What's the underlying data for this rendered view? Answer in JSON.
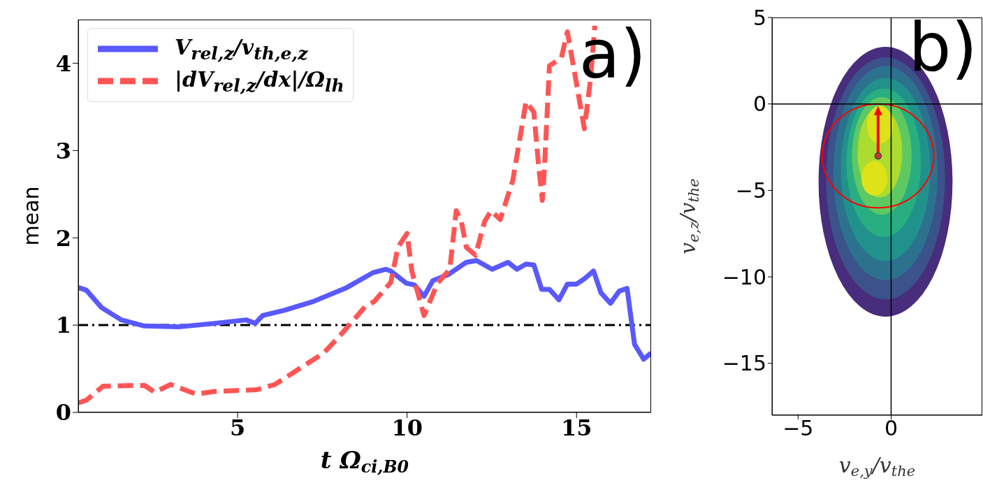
{
  "chart_data": [
    {
      "type": "line",
      "xlabel": "t Ω$_{ci,B0}$",
      "ylabel": "mean",
      "xlim": [
        0.3,
        17.2
      ],
      "xticks": [
        5,
        10,
        15
      ],
      "ylim": [
        0,
        4.5
      ],
      "yticks": [
        0,
        1,
        2,
        3,
        4
      ],
      "legend": "top left",
      "marker": "none",
      "annotations": [
        "a)"
      ],
      "ref_lines": [
        {
          "axis": "y",
          "value": 1,
          "color": "#000000",
          "line_style": "dashdot"
        }
      ],
      "series": [
        {
          "name": "V$_{rel,z}$/v$_{th,e,z}$",
          "color": "#5959ff",
          "line_style": "solid",
          "x": [
            0.31,
            0.54,
            0.99,
            1.57,
            2.25,
            3.26,
            4.32,
            5.25,
            5.52,
            5.74,
            6.38,
            7.23,
            8.22,
            8.99,
            9.38,
            9.52,
            9.98,
            10.22,
            10.5,
            10.76,
            11.22,
            11.75,
            12.05,
            12.51,
            12.98,
            13.24,
            13.51,
            13.74,
            13.97,
            14.2,
            14.48,
            14.73,
            15.0,
            15.23,
            15.5,
            15.72,
            16.0,
            16.26,
            16.49,
            16.71,
            16.98,
            17.2
          ],
          "values": [
            1.43,
            1.4,
            1.2,
            1.06,
            0.99,
            0.98,
            1.02,
            1.06,
            1.02,
            1.11,
            1.17,
            1.27,
            1.43,
            1.6,
            1.64,
            1.62,
            1.48,
            1.46,
            1.33,
            1.51,
            1.58,
            1.72,
            1.74,
            1.64,
            1.72,
            1.64,
            1.7,
            1.69,
            1.41,
            1.41,
            1.29,
            1.47,
            1.47,
            1.53,
            1.62,
            1.37,
            1.25,
            1.39,
            1.42,
            0.78,
            0.61,
            0.68
          ]
        },
        {
          "name": "|dV$_{rel,z}$/dx|/Ω$_{lh}$",
          "color": "#ff5555",
          "line_style": "dashed",
          "x": [
            0.31,
            0.54,
            1.03,
            2.25,
            2.56,
            3.02,
            3.78,
            4.32,
            5.56,
            6.1,
            6.78,
            7.54,
            8.0,
            8.76,
            9.03,
            9.52,
            9.73,
            9.88,
            10.0,
            10.14,
            10.5,
            10.9,
            11.26,
            11.45,
            11.6,
            11.75,
            12.02,
            12.29,
            12.48,
            12.75,
            13.12,
            13.51,
            13.74,
            13.88,
            13.99,
            14.05,
            14.2,
            14.55,
            14.73,
            15.23,
            15.41,
            15.54
          ],
          "values": [
            0.11,
            0.14,
            0.3,
            0.31,
            0.23,
            0.32,
            0.21,
            0.24,
            0.26,
            0.32,
            0.49,
            0.68,
            0.87,
            1.21,
            1.27,
            1.49,
            1.89,
            1.98,
            2.05,
            1.62,
            1.11,
            1.48,
            1.64,
            2.31,
            2.19,
            1.89,
            1.8,
            2.19,
            2.31,
            2.21,
            2.66,
            3.56,
            3.44,
            2.83,
            2.43,
            2.78,
            3.97,
            4.06,
            4.36,
            3.25,
            3.81,
            4.43
          ]
        }
      ]
    },
    {
      "type": "scatter",
      "xlabel": "v$_{e,y}$/v$_{the}$",
      "ylabel": "v$_{e,z}$/v$_{the}$",
      "xlim": [
        -6.4,
        4.9
      ],
      "xticks": [
        -5,
        0
      ],
      "ylim": [
        -18,
        5
      ],
      "yticks": [
        -15,
        -10,
        -5,
        0,
        5
      ],
      "marker": "circle",
      "annotations": [
        "b)"
      ],
      "ref_lines": [
        {
          "axis": "x",
          "value": 0,
          "color": "#000000",
          "line_style": "solid"
        },
        {
          "axis": "y",
          "value": 0,
          "color": "#000000",
          "line_style": "solid"
        }
      ],
      "series": [
        {
          "color": "#cc3333",
          "x": [
            -0.7
          ],
          "values": [
            -3
          ]
        }
      ]
    }
  ]
}
